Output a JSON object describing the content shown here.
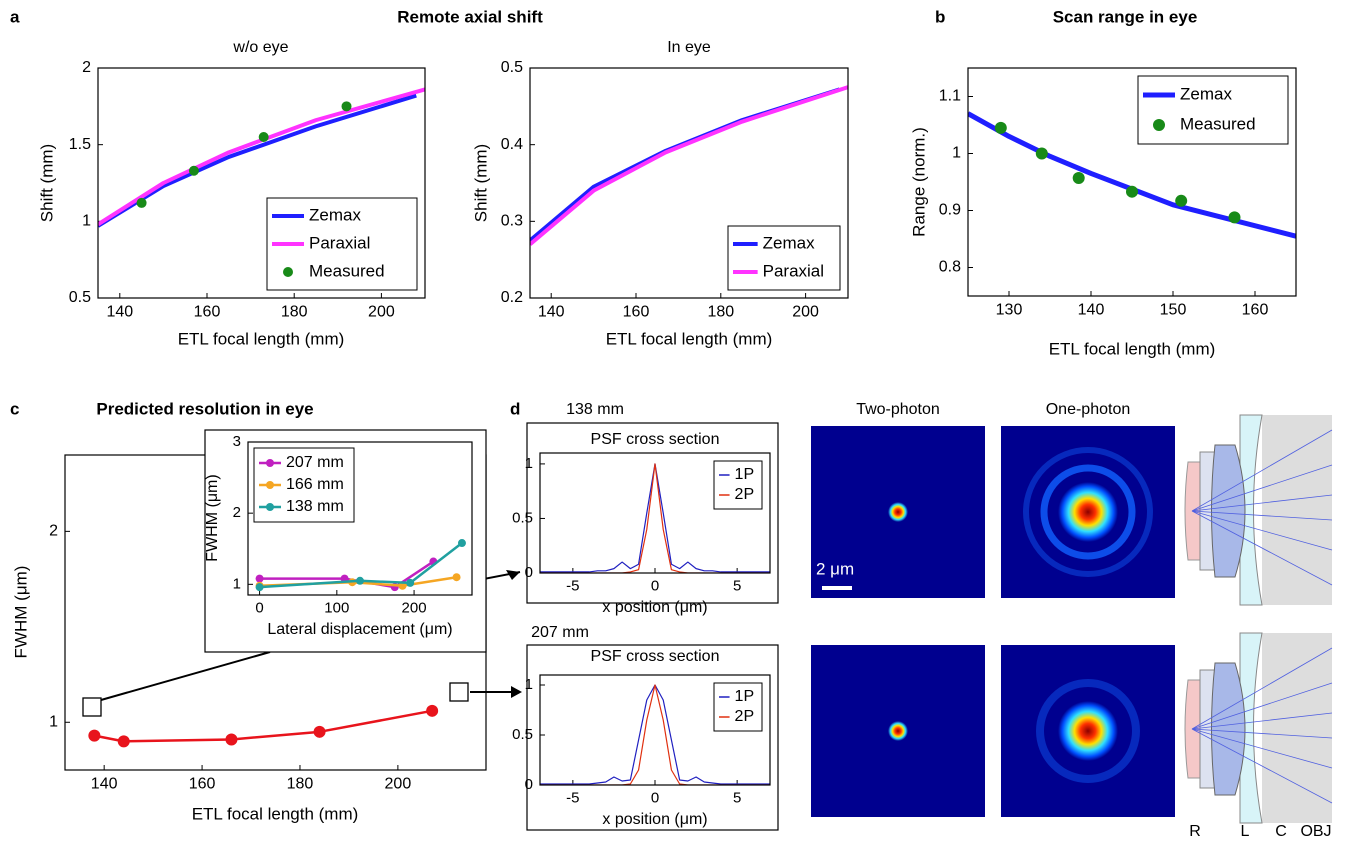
{
  "figure": {
    "panel_labels": [
      "a",
      "b",
      "c",
      "d"
    ],
    "heading_a": "Remote axial shift"
  },
  "panel_d": {
    "rows": [
      "138 mm",
      "207 mm"
    ],
    "columns": [
      "Two-photon",
      "One-photon"
    ],
    "scale_bar": "2 μm",
    "lens_labels": [
      "R",
      "L",
      "C",
      "OBJ"
    ]
  },
  "chart_data": [
    {
      "type": "line",
      "title": "w/o eye",
      "x_label": "ETL focal length (mm)",
      "y_label": "Shift (mm)",
      "xlim": [
        135,
        210
      ],
      "ylim": [
        0.5,
        2
      ],
      "xticks": [
        140,
        160,
        180,
        200
      ],
      "yticks": [
        0.5,
        1,
        1.5,
        2
      ],
      "legend": "lower right",
      "series": [
        {
          "name": "Zemax",
          "color": "#1f1fff",
          "mode": "lines",
          "x": [
            135,
            150,
            165,
            185,
            208
          ],
          "values": [
            0.97,
            1.23,
            1.42,
            1.62,
            1.82
          ]
        },
        {
          "name": "Paraxial",
          "color": "#ff33ff",
          "mode": "lines",
          "x": [
            135,
            150,
            165,
            185,
            210
          ],
          "values": [
            0.98,
            1.25,
            1.45,
            1.66,
            1.86
          ]
        },
        {
          "name": "Measured",
          "color": "#188a18",
          "mode": "markers",
          "x": [
            145,
            157,
            173,
            192
          ],
          "values": [
            1.12,
            1.33,
            1.55,
            1.75
          ]
        }
      ]
    },
    {
      "type": "line",
      "title": "In eye",
      "x_label": "ETL focal length (mm)",
      "y_label": "Shift (mm)",
      "xlim": [
        135,
        210
      ],
      "ylim": [
        0.2,
        0.5
      ],
      "xticks": [
        140,
        160,
        180,
        200
      ],
      "yticks": [
        0.2,
        0.3,
        0.4,
        0.5
      ],
      "legend": "lower right",
      "series": [
        {
          "name": "Zemax",
          "color": "#1f1fff",
          "mode": "lines",
          "x": [
            135,
            150,
            167,
            185,
            208
          ],
          "values": [
            0.275,
            0.345,
            0.392,
            0.432,
            0.472
          ]
        },
        {
          "name": "Paraxial",
          "color": "#ff33ff",
          "mode": "lines",
          "x": [
            135,
            150,
            167,
            185,
            210
          ],
          "values": [
            0.27,
            0.34,
            0.39,
            0.43,
            0.475
          ]
        }
      ]
    },
    {
      "type": "line",
      "title": "Scan range in eye",
      "x_label": "ETL focal length (mm)",
      "y_label": "Range (norm.)",
      "xlim": [
        125,
        165
      ],
      "ylim": [
        0.75,
        1.15
      ],
      "xticks": [
        130,
        140,
        150,
        160
      ],
      "yticks": [
        0.8,
        0.9,
        1,
        1.1
      ],
      "legend": "upper right",
      "series": [
        {
          "name": "Zemax",
          "color": "#1f1fff",
          "mode": "lines",
          "x": [
            125,
            130,
            135,
            140,
            150,
            165
          ],
          "values": [
            1.07,
            1.03,
            0.995,
            0.965,
            0.91,
            0.855
          ]
        },
        {
          "name": "Measured",
          "color": "#188a18",
          "mode": "markers",
          "x": [
            129,
            134,
            138.5,
            145,
            151,
            157.5
          ],
          "values": [
            1.045,
            1.0,
            0.957,
            0.933,
            0.917,
            0.888
          ]
        }
      ]
    },
    {
      "type": "line",
      "title": "Predicted resolution in eye",
      "x_label": "ETL focal length (mm)",
      "y_label": "FWHM (μm)",
      "xlim": [
        132,
        218
      ],
      "ylim": [
        0.75,
        2.4
      ],
      "xticks": [
        140,
        160,
        180,
        200
      ],
      "yticks": [
        1,
        2
      ],
      "series": [
        {
          "color": "#e8141c",
          "mode": "lines+markers",
          "x": [
            138,
            144,
            166,
            184,
            207
          ],
          "values": [
            0.93,
            0.9,
            0.91,
            0.95,
            1.06
          ]
        }
      ]
    },
    {
      "type": "line",
      "x_label": "Lateral displacement (μm)",
      "y_label": "FWHM (μm)",
      "xlim": [
        -15,
        275
      ],
      "ylim": [
        0.85,
        3
      ],
      "xticks": [
        0,
        100,
        200
      ],
      "yticks": [
        1,
        2,
        3
      ],
      "legend": "upper left",
      "series": [
        {
          "name": "207 mm",
          "color": "#c020c0",
          "mode": "lines+markers",
          "x": [
            0,
            110,
            175,
            225
          ],
          "values": [
            1.08,
            1.08,
            0.96,
            1.32
          ]
        },
        {
          "name": "166 mm",
          "color": "#f5a623",
          "mode": "lines+markers",
          "x": [
            0,
            120,
            185,
            255
          ],
          "values": [
            0.98,
            1.03,
            0.98,
            1.1
          ]
        },
        {
          "name": "138 mm",
          "color": "#20a0a0",
          "mode": "lines+markers",
          "x": [
            0,
            130,
            195,
            262
          ],
          "values": [
            0.96,
            1.05,
            1.02,
            1.58
          ]
        }
      ]
    },
    {
      "type": "line",
      "title": "PSF cross section",
      "x_label": "x position (μm)",
      "xlim": [
        -7,
        7
      ],
      "ylim": [
        0,
        1.1
      ],
      "xticks": [
        -5,
        0,
        5
      ],
      "yticks": [
        0,
        0.5,
        1
      ],
      "legend": "upper right",
      "series": [
        {
          "name": "1P",
          "color": "#2020c0",
          "mode": "lines",
          "x": [
            -7,
            -6.5,
            -6,
            -5.5,
            -5,
            -4.5,
            -4,
            -3.5,
            -3,
            -2.5,
            -2,
            -1.5,
            -1,
            -0.5,
            0,
            0.5,
            1,
            1.5,
            2,
            2.5,
            3,
            3.5,
            4,
            4.5,
            5,
            5.5,
            6,
            6.5,
            7
          ],
          "values": [
            0.01,
            0.01,
            0.01,
            0.01,
            0.01,
            0.01,
            0.01,
            0.02,
            0.02,
            0.04,
            0.1,
            0.04,
            0.08,
            0.55,
            1,
            0.55,
            0.08,
            0.04,
            0.1,
            0.04,
            0.02,
            0.02,
            0.01,
            0.01,
            0.01,
            0.01,
            0.01,
            0.01,
            0.01
          ]
        },
        {
          "name": "2P",
          "color": "#e03010",
          "mode": "lines",
          "x": [
            -7,
            -6.5,
            -6,
            -5.5,
            -5,
            -4.5,
            -4,
            -3.5,
            -3,
            -2.5,
            -2,
            -1.5,
            -1,
            -0.5,
            0,
            0.5,
            1,
            1.5,
            2,
            2.5,
            3,
            3.5,
            4,
            4.5,
            5,
            5.5,
            6,
            6.5,
            7
          ],
          "values": [
            0,
            0,
            0,
            0,
            0,
            0,
            0,
            0,
            0,
            0,
            0,
            0.01,
            0.03,
            0.4,
            1,
            0.4,
            0.03,
            0.01,
            0,
            0,
            0,
            0,
            0,
            0,
            0,
            0,
            0,
            0,
            0
          ]
        }
      ]
    },
    {
      "type": "line",
      "title": "PSF cross section",
      "x_label": "x position (μm)",
      "xlim": [
        -7,
        7
      ],
      "ylim": [
        0,
        1.1
      ],
      "xticks": [
        -5,
        0,
        5
      ],
      "yticks": [
        0,
        0.5,
        1
      ],
      "legend": "upper right",
      "series": [
        {
          "name": "1P",
          "color": "#2020c0",
          "mode": "lines",
          "x": [
            -7,
            -6.5,
            -6,
            -5.5,
            -5,
            -4.5,
            -4,
            -3.5,
            -3,
            -2.5,
            -2,
            -1.5,
            -1,
            -0.5,
            0,
            0.5,
            1,
            1.5,
            2,
            2.5,
            3,
            3.5,
            4,
            4.5,
            5,
            5.5,
            6,
            6.5,
            7
          ],
          "values": [
            0.01,
            0.01,
            0.01,
            0.01,
            0.01,
            0.01,
            0.01,
            0.02,
            0.03,
            0.08,
            0.04,
            0.05,
            0.45,
            0.85,
            1,
            0.85,
            0.45,
            0.05,
            0.04,
            0.08,
            0.03,
            0.02,
            0.01,
            0.01,
            0.01,
            0.01,
            0.01,
            0.01,
            0.01
          ]
        },
        {
          "name": "2P",
          "color": "#e03010",
          "mode": "lines",
          "x": [
            -7,
            -6.5,
            -6,
            -5.5,
            -5,
            -4.5,
            -4,
            -3.5,
            -3,
            -2.5,
            -2,
            -1.5,
            -1,
            -0.5,
            0,
            0.5,
            1,
            1.5,
            2,
            2.5,
            3,
            3.5,
            4,
            4.5,
            5,
            5.5,
            6,
            6.5,
            7
          ],
          "values": [
            0,
            0,
            0,
            0,
            0,
            0,
            0,
            0,
            0,
            0,
            0,
            0.01,
            0.15,
            0.65,
            1,
            0.65,
            0.15,
            0.01,
            0,
            0,
            0,
            0,
            0,
            0,
            0,
            0,
            0,
            0,
            0
          ]
        }
      ]
    }
  ]
}
